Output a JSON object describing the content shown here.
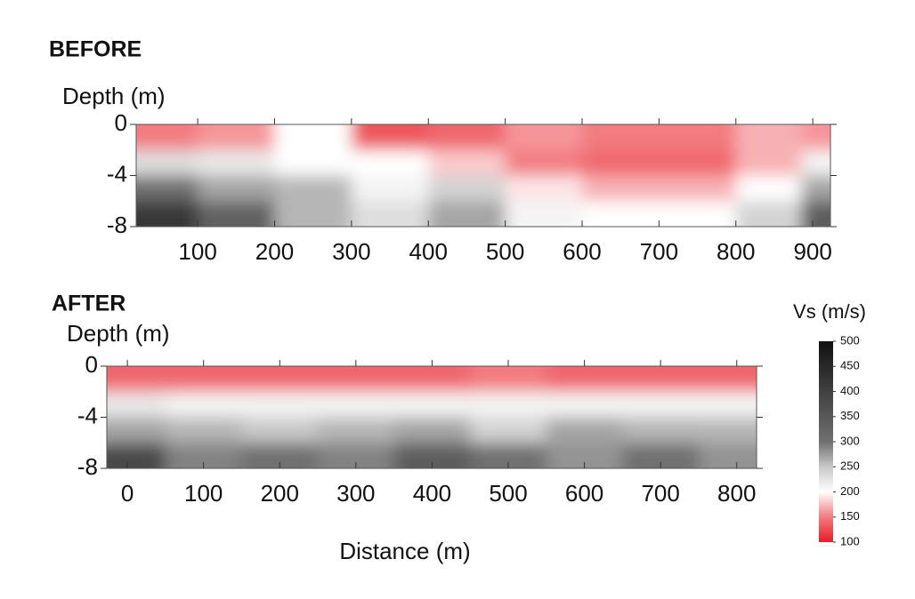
{
  "chart_data": [
    {
      "type": "heatmap",
      "title": "BEFORE",
      "ylabel": "Depth (m)",
      "xlim": [
        20,
        923
      ],
      "xticks": [
        100,
        200,
        300,
        400,
        500,
        600,
        700,
        800,
        900
      ],
      "ylim": [
        -8,
        0
      ],
      "yticks": [
        0,
        -4,
        -8
      ],
      "x": [
        50,
        150,
        250,
        350,
        450,
        550,
        650,
        750,
        850,
        920
      ],
      "y": [
        -1,
        -3,
        -5,
        -7
      ],
      "values": [
        [
          150,
          160,
          200,
          130,
          140,
          160,
          150,
          150,
          170,
          160
        ],
        [
          230,
          220,
          200,
          200,
          180,
          150,
          140,
          140,
          170,
          210
        ],
        [
          300,
          270,
          260,
          210,
          240,
          190,
          170,
          170,
          200,
          270
        ],
        [
          420,
          330,
          260,
          230,
          270,
          210,
          200,
          200,
          240,
          340
        ]
      ]
    },
    {
      "type": "heatmap",
      "title": "AFTER",
      "ylabel": "Depth (m)",
      "xlabel": "Distance (m)",
      "xlim": [
        -27,
        826
      ],
      "xticks": [
        0,
        100,
        200,
        300,
        400,
        500,
        600,
        700,
        800
      ],
      "ylim": [
        -8,
        0
      ],
      "yticks": [
        0,
        -4,
        -8
      ],
      "x": [
        0,
        100,
        200,
        300,
        400,
        500,
        600,
        700,
        800
      ],
      "y": [
        -1,
        -3,
        -5,
        -7
      ],
      "values": [
        [
          140,
          140,
          140,
          140,
          140,
          150,
          140,
          140,
          140
        ],
        [
          220,
          210,
          210,
          210,
          210,
          210,
          210,
          210,
          210
        ],
        [
          270,
          260,
          250,
          260,
          270,
          240,
          270,
          260,
          260
        ],
        [
          380,
          290,
          300,
          290,
          340,
          300,
          280,
          300,
          280
        ]
      ],
      "colorbar": {
        "label": "Vs (m/s)",
        "lim": [
          100,
          500
        ],
        "ticks": [
          100,
          150,
          200,
          250,
          300,
          350,
          400,
          450,
          500
        ],
        "stops": [
          100,
          150,
          200,
          250,
          300,
          500
        ],
        "colors": [
          "#e41e26",
          "#f27b80",
          "#ffffff",
          "#c8c8c8",
          "#707070",
          "#111111"
        ]
      }
    }
  ]
}
